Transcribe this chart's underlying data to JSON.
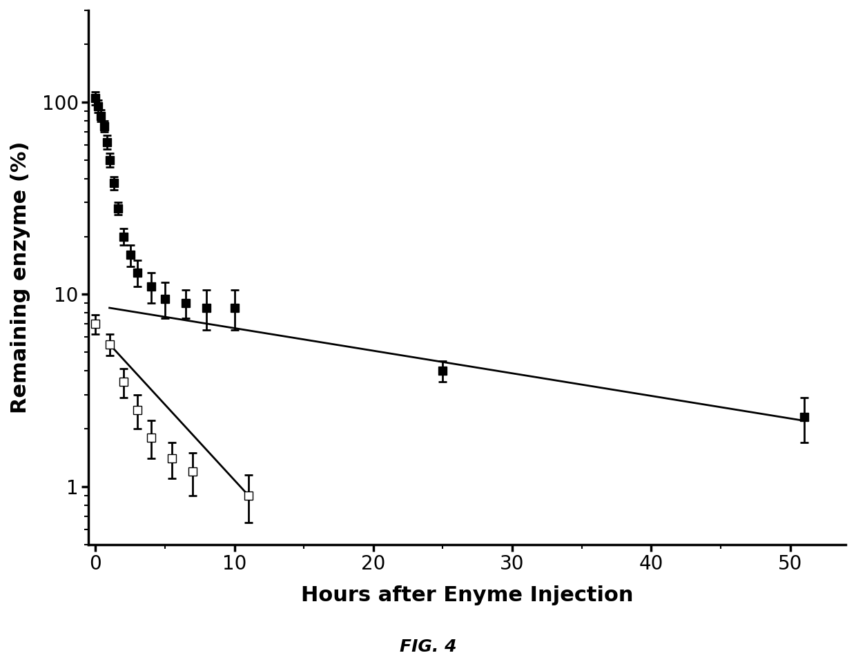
{
  "title_below": "FIG. 4",
  "xlabel": "Hours after Enyme Injection",
  "ylabel": "Remaining enzyme (%)",
  "xlim": [
    -0.5,
    54
  ],
  "ylim": [
    0.5,
    300
  ],
  "xticks": [
    0,
    10,
    20,
    30,
    40,
    50
  ],
  "yticks": [
    1,
    10,
    100
  ],
  "background_color": "#ffffff",
  "filled_squares": {
    "x": [
      0,
      0.2,
      0.4,
      0.6,
      0.8,
      1.0,
      1.3,
      1.6,
      2.0,
      2.5,
      3.0,
      4.0,
      5.0,
      6.5,
      8.0,
      10.0,
      25.0,
      51.0
    ],
    "y": [
      105,
      95,
      85,
      75,
      62,
      50,
      38,
      28,
      20,
      16,
      13,
      11,
      9.5,
      9.0,
      8.5,
      8.5,
      4.0,
      2.3
    ],
    "yerr": [
      8,
      7,
      6,
      5,
      5,
      4,
      3,
      2,
      2,
      2,
      2,
      2,
      2,
      1.5,
      2,
      2,
      0.5,
      0.6
    ]
  },
  "open_squares": {
    "x": [
      0,
      1.0,
      2.0,
      3.0,
      4.0,
      5.5,
      7.0,
      11.0
    ],
    "y": [
      7.0,
      5.5,
      3.5,
      2.5,
      1.8,
      1.4,
      1.2,
      0.9
    ],
    "yerr": [
      0.8,
      0.7,
      0.6,
      0.5,
      0.4,
      0.3,
      0.3,
      0.25
    ]
  },
  "fit_line": {
    "x": [
      1.0,
      51.0
    ],
    "y": [
      8.5,
      2.2
    ]
  },
  "open_line": {
    "x": [
      1.0,
      11.0
    ],
    "y": [
      5.5,
      0.9
    ]
  },
  "marker_size": 9,
  "line_width": 2.0,
  "font_size_label": 22,
  "font_size_tick": 20,
  "font_size_title": 18
}
